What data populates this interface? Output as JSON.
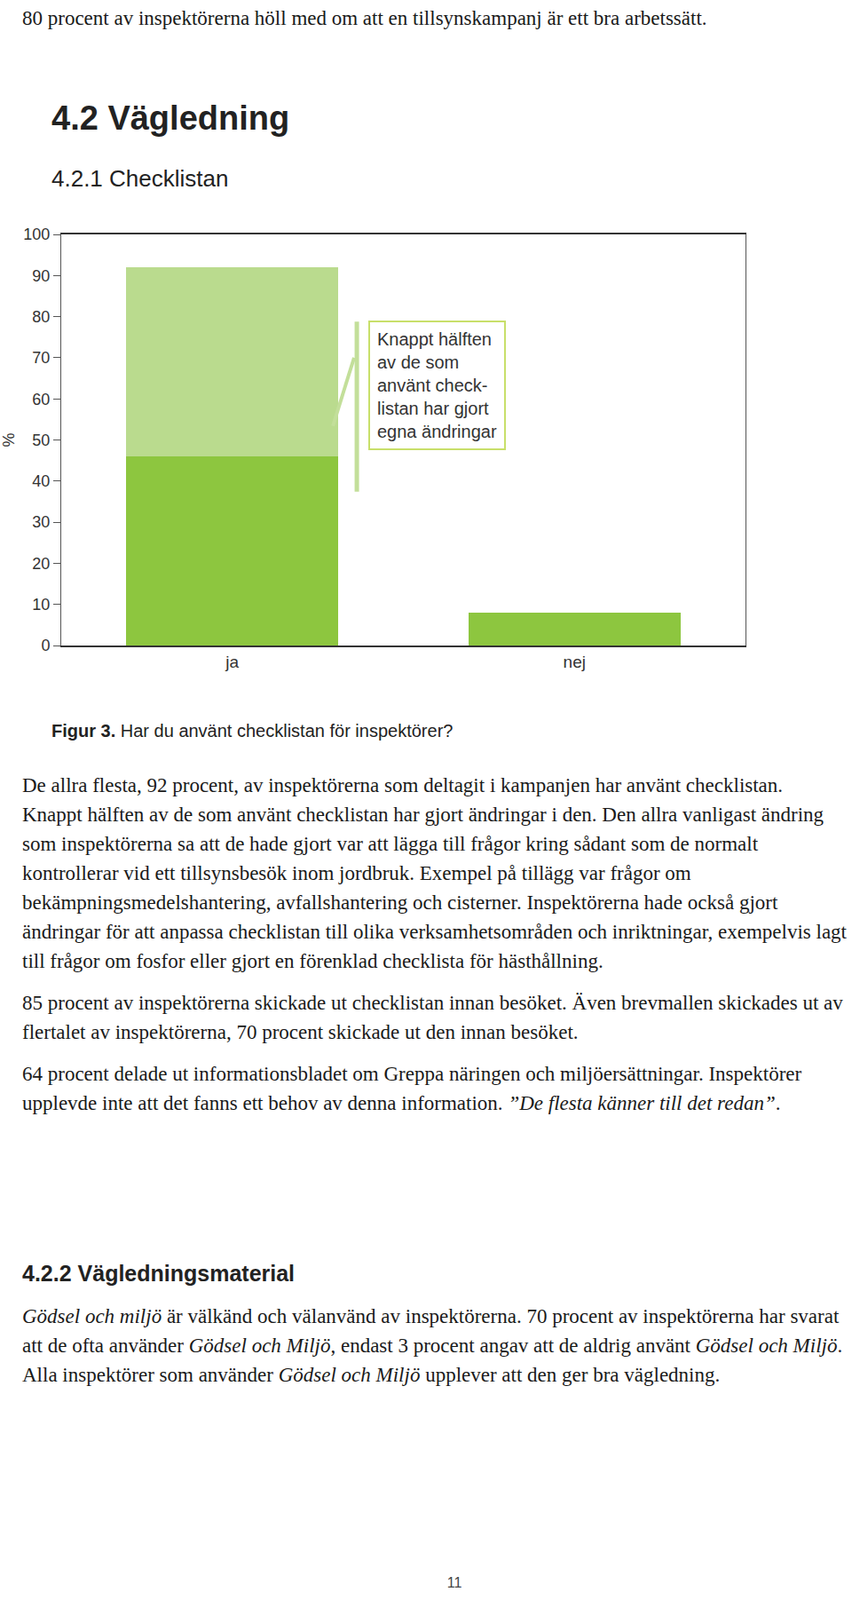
{
  "page": {
    "intro": "80 procent av inspektörerna höll med om att en tillsynskampanj är ett bra arbetssätt.",
    "section": "4.2 Vägledning",
    "subsection": "4.2.1 Checklistan",
    "caption": [
      {
        "text": "Figur 3.",
        "bold": true
      },
      {
        "text": " Har du använt checklistan för inspektörer?"
      }
    ],
    "paragraphs": [
      [
        {
          "text": "De allra flesta, 92 procent, av inspektörerna som deltagit i kampanjen har använt checklistan. Knappt hälften av de som använt checklistan har gjort ändringar i den. Den allra vanligast ändring som inspektörerna sa att de hade gjort var att lägga till frågor kring sådant som de normalt kontrollerar vid ett tillsynsbesök inom jordbruk. Exempel på tillägg var frågor om bekämpningsmedelshantering, avfallshantering och cisterner. Inspektörerna hade också gjort ändringar för att anpassa checklistan till olika verksamhetsområden och inriktningar, exempelvis lagt till frågor om fosfor eller gjort en förenklad checklista för hästhållning."
        }
      ],
      [
        {
          "text": "85 procent av inspektörerna skickade ut checklistan innan besöket. Även brevmallen skickades ut av flertalet av inspektörerna, 70 procent skickade ut den innan besöket."
        }
      ],
      [
        {
          "text": "64 procent delade ut informationsbladet om Greppa näringen och miljöersättningar. Inspektörer upplevde inte att det fanns ett behov av denna information. "
        },
        {
          "text": "”De flesta känner till det redan”",
          "italic": true
        },
        {
          "text": "."
        }
      ]
    ],
    "subsection2": "4.2.2 Vägledningsmaterial",
    "paragraphs2": [
      [
        {
          "text": "Gödsel och miljö",
          "italic": true
        },
        {
          "text": " är välkänd och välanvänd av inspektörerna. 70 procent av inspektörerna har svarat att de ofta använder "
        },
        {
          "text": "Gödsel och Miljö",
          "italic": true
        },
        {
          "text": ", endast 3 procent angav att de aldrig använt "
        },
        {
          "text": "Gödsel och Miljö",
          "italic": true
        },
        {
          "text": ". Alla inspektörer som använder "
        },
        {
          "text": "Gödsel och Miljö",
          "italic": true
        },
        {
          "text": " upplever att den ger bra vägledning."
        }
      ]
    ],
    "page_number": "11"
  },
  "chart_data": {
    "type": "bar",
    "stacked": true,
    "categories": [
      "ja",
      "nej"
    ],
    "series": [
      {
        "color": "#8dc63f",
        "values": [
          46,
          8
        ]
      },
      {
        "color": "#badb8e",
        "values": [
          46,
          null
        ]
      }
    ],
    "ylabel": "%",
    "ylim": [
      0,
      100
    ],
    "yticks": [
      0,
      10,
      20,
      30,
      40,
      50,
      60,
      70,
      80,
      90,
      100
    ],
    "grid": false,
    "annotation": {
      "lines": [
        "Knappt hälften",
        "av de som",
        "använt check-",
        "listan har gjort",
        "egna ändringar"
      ]
    }
  }
}
